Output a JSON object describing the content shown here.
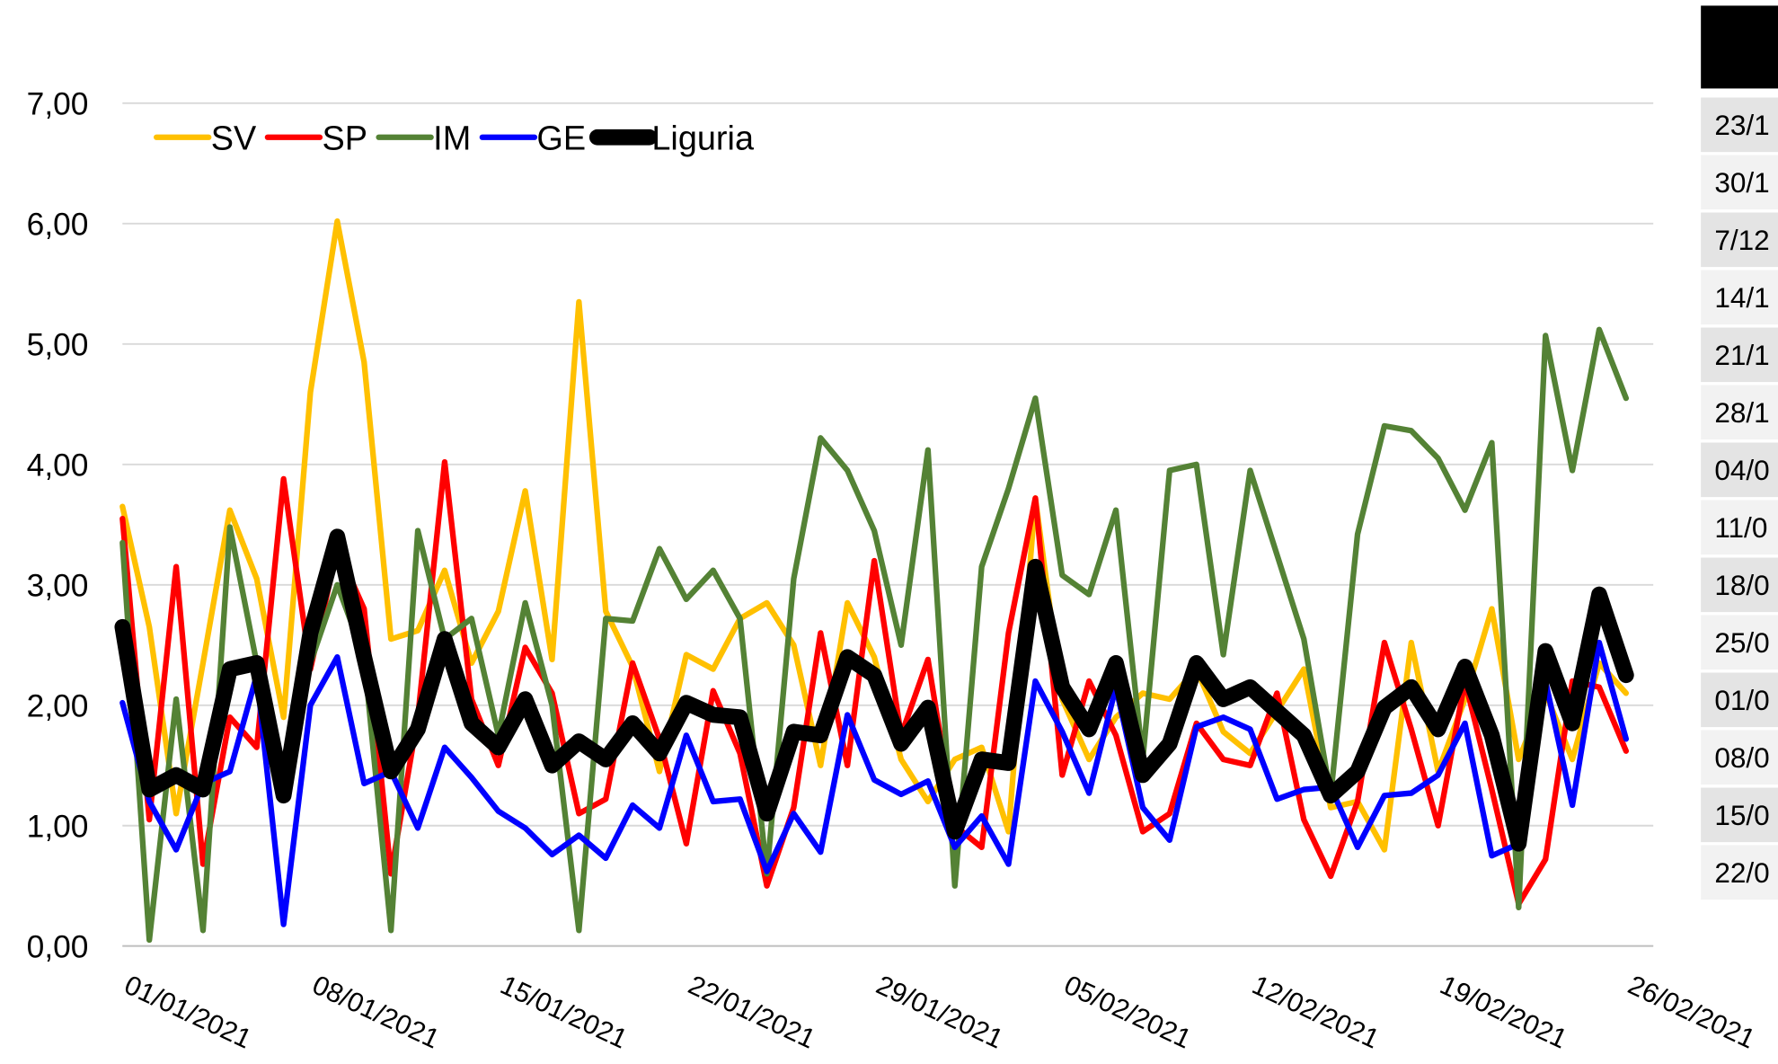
{
  "chart_data": {
    "type": "line",
    "categories": [
      "01/01/2021",
      null,
      null,
      null,
      null,
      null,
      null,
      "08/01/2021",
      null,
      null,
      null,
      null,
      null,
      null,
      "15/01/2021",
      null,
      null,
      null,
      null,
      null,
      null,
      "22/01/2021",
      null,
      null,
      null,
      null,
      null,
      null,
      "29/01/2021",
      null,
      null,
      null,
      null,
      null,
      null,
      "05/02/2021",
      null,
      null,
      null,
      null,
      null,
      null,
      "12/02/2021",
      null,
      null,
      null,
      null,
      null,
      null,
      "19/02/2021",
      null,
      null,
      null,
      null,
      null,
      null,
      "26/02/2021"
    ],
    "series": [
      {
        "name": "SV",
        "color": "#ffc000",
        "width": 5,
        "values": [
          3.65,
          2.65,
          1.1,
          2.35,
          3.62,
          3.05,
          1.9,
          4.6,
          6.02,
          4.85,
          2.55,
          2.62,
          3.12,
          2.35,
          2.78,
          3.78,
          2.38,
          5.35,
          2.78,
          2.32,
          1.45,
          2.42,
          2.3,
          2.72,
          2.85,
          2.5,
          1.5,
          2.85,
          2.4,
          1.55,
          1.2,
          1.55,
          1.65,
          0.95,
          3.72,
          2.05,
          1.55,
          1.9,
          2.1,
          2.05,
          2.3,
          1.78,
          1.6,
          1.95,
          2.3,
          1.15,
          1.2,
          0.8,
          2.52,
          1.45,
          2.05,
          2.8,
          1.55,
          2.1,
          1.55,
          2.35,
          2.1
        ]
      },
      {
        "name": "SP",
        "color": "#ff0000",
        "width": 5,
        "values": [
          3.55,
          1.05,
          3.15,
          0.68,
          1.9,
          1.65,
          3.88,
          2.3,
          3.3,
          2.8,
          0.6,
          1.9,
          4.02,
          2.05,
          1.5,
          2.48,
          2.1,
          1.1,
          1.22,
          2.35,
          1.72,
          0.85,
          2.12,
          1.6,
          0.5,
          1.15,
          2.6,
          1.5,
          3.2,
          1.75,
          2.38,
          1.0,
          0.82,
          2.6,
          3.72,
          1.42,
          2.2,
          1.75,
          0.95,
          1.1,
          1.85,
          1.55,
          1.5,
          2.1,
          1.05,
          0.58,
          1.2,
          2.52,
          1.8,
          1.0,
          2.2,
          1.3,
          0.35,
          0.72,
          2.2,
          2.15,
          1.62
        ]
      },
      {
        "name": "IM",
        "color": "#548235",
        "width": 5,
        "values": [
          3.35,
          0.05,
          2.05,
          0.13,
          3.48,
          2.35,
          1.3,
          2.35,
          3.0,
          2.4,
          0.13,
          3.45,
          2.55,
          2.72,
          1.75,
          2.85,
          2.0,
          0.13,
          2.72,
          2.7,
          3.3,
          2.88,
          3.12,
          2.72,
          0.6,
          3.05,
          4.22,
          3.95,
          3.45,
          2.5,
          4.12,
          0.5,
          3.15,
          3.8,
          4.55,
          3.08,
          2.92,
          3.62,
          1.55,
          3.95,
          4.0,
          2.42,
          3.95,
          3.25,
          2.55,
          1.25,
          3.42,
          4.32,
          4.28,
          4.05,
          3.62,
          4.18,
          0.32,
          5.07,
          3.95,
          5.12,
          4.55
        ]
      },
      {
        "name": "GE",
        "color": "#0000ff",
        "width": 5,
        "values": [
          2.02,
          1.2,
          0.8,
          1.35,
          1.45,
          2.25,
          0.18,
          2.0,
          2.4,
          1.35,
          1.45,
          0.98,
          1.65,
          1.4,
          1.12,
          0.98,
          0.76,
          0.92,
          0.73,
          1.17,
          0.98,
          1.75,
          1.2,
          1.22,
          0.62,
          1.1,
          0.78,
          1.92,
          1.38,
          1.26,
          1.37,
          0.82,
          1.08,
          0.68,
          2.2,
          1.78,
          1.27,
          2.15,
          1.15,
          0.88,
          1.82,
          1.9,
          1.8,
          1.22,
          1.3,
          1.32,
          0.82,
          1.25,
          1.27,
          1.42,
          1.85,
          0.75,
          0.85,
          2.2,
          1.17,
          2.52,
          1.72
        ]
      },
      {
        "name": "Liguria",
        "color": "#000000",
        "width": 14,
        "values": [
          2.65,
          1.3,
          1.42,
          1.3,
          2.3,
          2.35,
          1.25,
          2.6,
          3.4,
          2.4,
          1.45,
          1.8,
          2.55,
          1.85,
          1.65,
          2.05,
          1.5,
          1.7,
          1.55,
          1.85,
          1.6,
          2.02,
          1.92,
          1.9,
          1.1,
          1.78,
          1.75,
          2.4,
          2.25,
          1.68,
          1.98,
          0.95,
          1.55,
          1.52,
          3.15,
          2.15,
          1.8,
          2.35,
          1.42,
          1.68,
          2.35,
          2.05,
          2.15,
          1.95,
          1.75,
          1.25,
          1.45,
          1.98,
          2.15,
          1.8,
          2.32,
          1.75,
          0.85,
          2.45,
          1.85,
          2.92,
          2.25
        ]
      }
    ],
    "ylim": [
      0,
      7
    ],
    "yticks": [
      {
        "value": 0,
        "label": "0,00"
      },
      {
        "value": 1,
        "label": "1,00"
      },
      {
        "value": 2,
        "label": "2,00"
      },
      {
        "value": 3,
        "label": "3,00"
      },
      {
        "value": 4,
        "label": "4,00"
      },
      {
        "value": 5,
        "label": "5,00"
      },
      {
        "value": 6,
        "label": "6,00"
      },
      {
        "value": 7,
        "label": "7,00"
      }
    ],
    "grid": true,
    "legend": "top-left"
  },
  "table": {
    "rows": [
      "23/1",
      "30/1",
      "7/12",
      "14/1",
      "21/1",
      "28/1",
      "04/0",
      "11/0",
      "18/0",
      "25/0",
      "01/0",
      "08/0",
      "15/0",
      "22/0"
    ]
  }
}
